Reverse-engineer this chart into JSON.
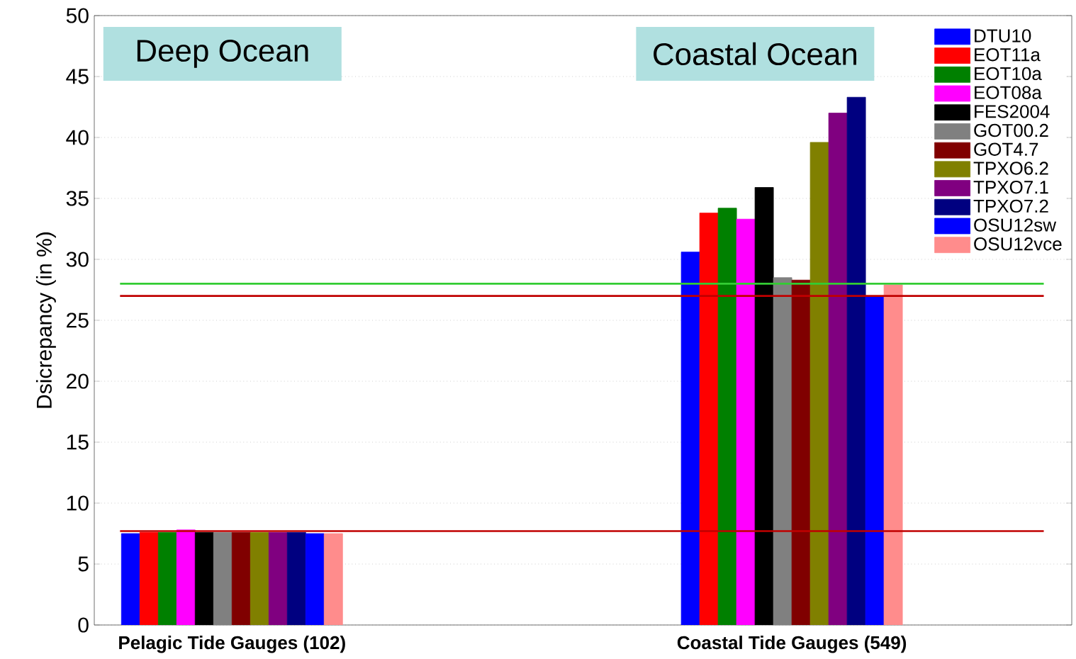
{
  "chart_data": {
    "type": "bar",
    "ylabel": "Dsicrepancy (in %)",
    "categories": [
      "Pelagic Tide Gauges (102)",
      "Coastal Tide Gauges (549)"
    ],
    "series": [
      {
        "name": "DTU10",
        "color": "#0000ff",
        "values": [
          7.5,
          30.6
        ]
      },
      {
        "name": "EOT11a",
        "color": "#ff0000",
        "values": [
          7.6,
          33.8
        ]
      },
      {
        "name": "EOT10a",
        "color": "#008000",
        "values": [
          7.6,
          34.2
        ]
      },
      {
        "name": "EOT08a",
        "color": "#ff00ff",
        "values": [
          7.8,
          33.3
        ]
      },
      {
        "name": "FES2004",
        "color": "#000000",
        "values": [
          7.6,
          35.9
        ]
      },
      {
        "name": "GOT00.2",
        "color": "#808080",
        "values": [
          7.6,
          28.5
        ]
      },
      {
        "name": "GOT4.7",
        "color": "#800000",
        "values": [
          7.6,
          28.3
        ]
      },
      {
        "name": "TPXO6.2",
        "color": "#808000",
        "values": [
          7.6,
          39.6
        ]
      },
      {
        "name": "TPXO7.1",
        "color": "#800080",
        "values": [
          7.6,
          42.0
        ]
      },
      {
        "name": "TPXO7.2",
        "color": "#000080",
        "values": [
          7.6,
          43.3
        ]
      },
      {
        "name": "OSU12sw",
        "color": "#0000ff",
        "values": [
          7.5,
          27.0
        ]
      },
      {
        "name": "OSU12vce",
        "color": "#ff8c8c",
        "values": [
          7.5,
          27.9
        ]
      }
    ],
    "ylim": [
      0,
      50
    ],
    "yticks": [
      0,
      5,
      10,
      15,
      20,
      25,
      30,
      35,
      40,
      45,
      50
    ],
    "ref_lines": [
      {
        "axis": "y",
        "value": 7.7,
        "color": "#c00000"
      },
      {
        "axis": "y",
        "value": 27.0,
        "color": "#c00000"
      },
      {
        "axis": "y",
        "value": 28.0,
        "color": "#33cc33"
      }
    ],
    "annotations": [
      "Deep Ocean",
      "Coastal Ocean"
    ],
    "grid": "y",
    "legend": "top right"
  }
}
